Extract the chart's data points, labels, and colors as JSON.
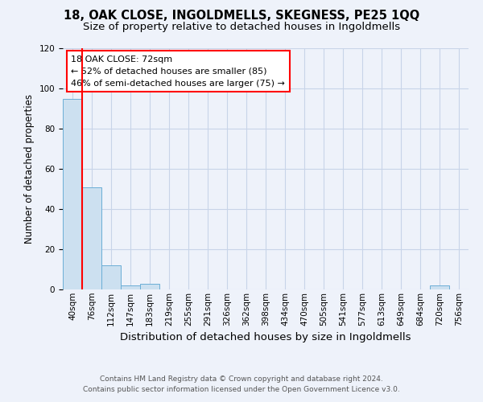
{
  "title1": "18, OAK CLOSE, INGOLDMELLS, SKEGNESS, PE25 1QQ",
  "title2": "Size of property relative to detached houses in Ingoldmells",
  "xlabel": "Distribution of detached houses by size in Ingoldmells",
  "ylabel": "Number of detached properties",
  "footnote1": "Contains HM Land Registry data © Crown copyright and database right 2024.",
  "footnote2": "Contains public sector information licensed under the Open Government Licence v3.0.",
  "bin_labels": [
    "40sqm",
    "76sqm",
    "112sqm",
    "147sqm",
    "183sqm",
    "219sqm",
    "255sqm",
    "291sqm",
    "326sqm",
    "362sqm",
    "398sqm",
    "434sqm",
    "470sqm",
    "505sqm",
    "541sqm",
    "577sqm",
    "613sqm",
    "649sqm",
    "684sqm",
    "720sqm",
    "756sqm"
  ],
  "bar_heights": [
    95,
    51,
    12,
    2,
    3,
    0,
    0,
    0,
    0,
    0,
    0,
    0,
    0,
    0,
    0,
    0,
    0,
    0,
    0,
    2,
    0
  ],
  "bar_color": "#cce0f0",
  "bar_edge_color": "#6baed6",
  "red_line_index": 1,
  "annotation_line1": "18 OAK CLOSE: 72sqm",
  "annotation_line2": "← 52% of detached houses are smaller (85)",
  "annotation_line3": "46% of semi-detached houses are larger (75) →",
  "annotation_box_color": "white",
  "annotation_box_edge_color": "red",
  "red_line_color": "red",
  "ylim": [
    0,
    120
  ],
  "yticks": [
    0,
    20,
    40,
    60,
    80,
    100,
    120
  ],
  "grid_color": "#c8d4e8",
  "background_color": "#eef2fa",
  "title1_fontsize": 10.5,
  "title2_fontsize": 9.5,
  "xlabel_fontsize": 9.5,
  "ylabel_fontsize": 8.5,
  "annotation_fontsize": 8.0,
  "tick_fontsize": 7.5
}
